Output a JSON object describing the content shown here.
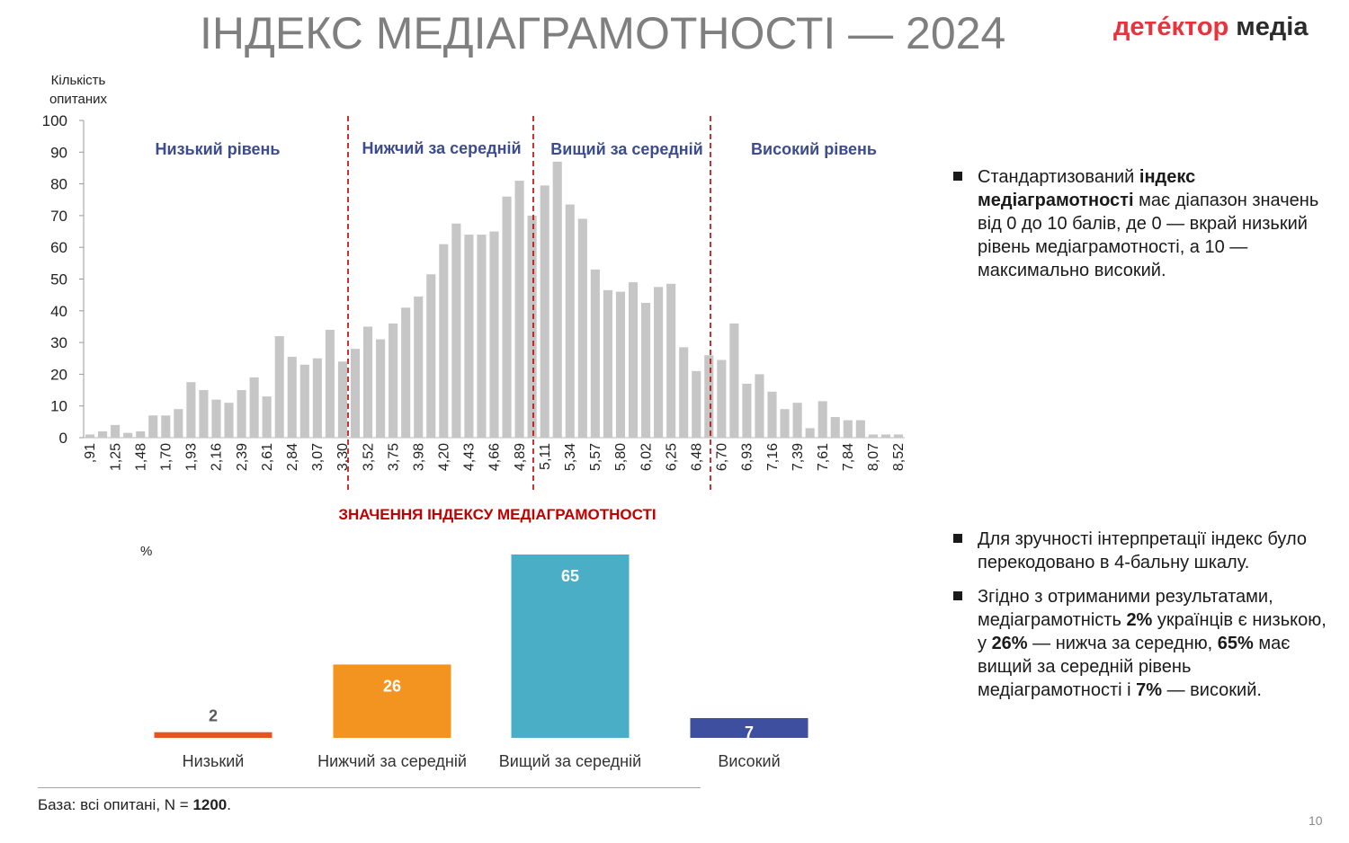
{
  "header": {
    "title": "ІНДЕКС МЕДІАГРАМОТНОСТІ — 2024",
    "logo_part1": "детéктор",
    "logo_part2": " медіа"
  },
  "histogram": {
    "ylabel_line1": "Кількість",
    "ylabel_line2": "опитаних",
    "xlabel": "ЗНАЧЕННЯ ІНДЕКСУ МЕДІАГРАМОТНОСТІ",
    "zones": [
      "Низький рівень",
      "Нижчий за середній",
      "Вищий за середній",
      "Високий рівень"
    ]
  },
  "bar_chart": {
    "unit": "%",
    "base_prefix": "База: всі опитані, N = ",
    "base_n": "1200",
    "base_suffix": "."
  },
  "bullets": {
    "b1_pre": "Стандартизований ",
    "b1_bold": "індекс медіаграмотності",
    "b1_post": " має діапазон значень від 0 до 10 балів, де 0 — вкрай низький рівень медіаграмотності, а 10 — максимально високий.",
    "b2": "Для зручності інтерпретації індекс було перекодовано в 4-бальну шкалу.",
    "b3_p1": "Згідно з отриманими результатами, медіаграмотність ",
    "b3_v1": "2%",
    "b3_p2": " українців є низькою, у ",
    "b3_v2": "26%",
    "b3_p3": " — нижча за середню, ",
    "b3_v3": "65%",
    "b3_p4": " має вищий за середній рівень медіаграмотності і  ",
    "b3_v4": "7%",
    "b3_p5": " — високий."
  },
  "page_number": "10",
  "chart_data": [
    {
      "type": "bar",
      "ylabel": "Кількість опитаних",
      "xlabel": "ЗНАЧЕННЯ ІНДЕКСУ МЕДІАГРАМОТНОСТІ",
      "ylim": [
        0,
        100
      ],
      "yticks": [
        0,
        10,
        20,
        30,
        40,
        50,
        60,
        70,
        80,
        90,
        100
      ],
      "xtick_labels": [
        ",91",
        "1,25",
        "1,48",
        "1,70",
        "1,93",
        "2,16",
        "2,39",
        "2,61",
        "2,84",
        "3,07",
        "3,30",
        "3,52",
        "3,75",
        "3,98",
        "4,20",
        "4,43",
        "4,66",
        "4,89",
        "5,11",
        "5,34",
        "5,57",
        "5,80",
        "6,02",
        "6,25",
        "6,48",
        "6,70",
        "6,93",
        "7,16",
        "7,39",
        "7,61",
        "7,84",
        "8,07",
        "8,52"
      ],
      "values": [
        1,
        2,
        4,
        1.5,
        2,
        7,
        7,
        9,
        17.5,
        15,
        12,
        11,
        15,
        19,
        13,
        32,
        25.5,
        23,
        25,
        34,
        24,
        28,
        35,
        31,
        36,
        41,
        44.5,
        51.5,
        61,
        67.5,
        64,
        64,
        65,
        76,
        81,
        70,
        79.5,
        87,
        73.5,
        69,
        53,
        46.5,
        46,
        49,
        42.5,
        47.5,
        48.5,
        28.5,
        21,
        26,
        24.5,
        36,
        17,
        20,
        14.5,
        9,
        11,
        3,
        11.5,
        6.5,
        5.5,
        5.5,
        1,
        1,
        1
      ],
      "color": "#c6c6c6",
      "zones": [
        "Низький рівень",
        "Нижчий за середній",
        "Вищий за середній",
        "Високий рівень"
      ],
      "zone_label_color": "#3c4c8c",
      "divider_color": "#c00000",
      "xlabel_color": "#c00000"
    },
    {
      "type": "bar",
      "ylabel": "%",
      "categories": [
        "Низький",
        "Нижчий за середній",
        "Вищий за середній",
        "Високий"
      ],
      "values": [
        2,
        26,
        65,
        7
      ],
      "colors": [
        "#e8541e",
        "#f39320",
        "#4aafc6",
        "#3f4f9f"
      ]
    }
  ]
}
